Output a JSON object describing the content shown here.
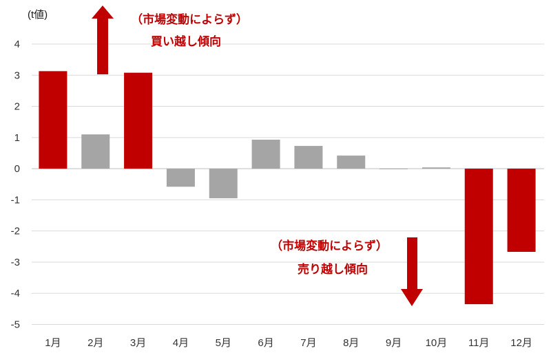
{
  "chart_data": {
    "type": "bar",
    "ylabel": "(t値)",
    "xlabel": "",
    "categories": [
      "1月",
      "2月",
      "3月",
      "4月",
      "5月",
      "6月",
      "7月",
      "8月",
      "9月",
      "10月",
      "11月",
      "12月"
    ],
    "values": [
      3.13,
      1.1,
      3.08,
      -0.58,
      -0.95,
      0.93,
      0.73,
      0.42,
      -0.02,
      0.04,
      -4.35,
      -2.67
    ],
    "bar_colors": [
      "#C00000",
      "#A5A5A5",
      "#C00000",
      "#A5A5A5",
      "#A5A5A5",
      "#A5A5A5",
      "#A5A5A5",
      "#A5A5A5",
      "#A5A5A5",
      "#A5A5A5",
      "#C00000",
      "#C00000"
    ],
    "ylim": [
      -5,
      4
    ],
    "yticks": [
      4,
      3,
      2,
      1,
      0,
      -1,
      -2,
      -3,
      -4,
      -5
    ],
    "grid": true,
    "colors": {
      "highlight": "#C00000",
      "normal": "#A5A5A5",
      "grid": "#D9D9D9",
      "axis": "#BFBFBF"
    }
  },
  "annotations": {
    "top": {
      "line1": "（市場変動によらず）",
      "line2": "買い越し傾向",
      "arrow": "up-arrow-icon"
    },
    "bottom": {
      "line1": "（市場変動によらず）",
      "line2": "売り越し傾向",
      "arrow": "down-arrow-icon"
    },
    "color": "#C00000"
  }
}
